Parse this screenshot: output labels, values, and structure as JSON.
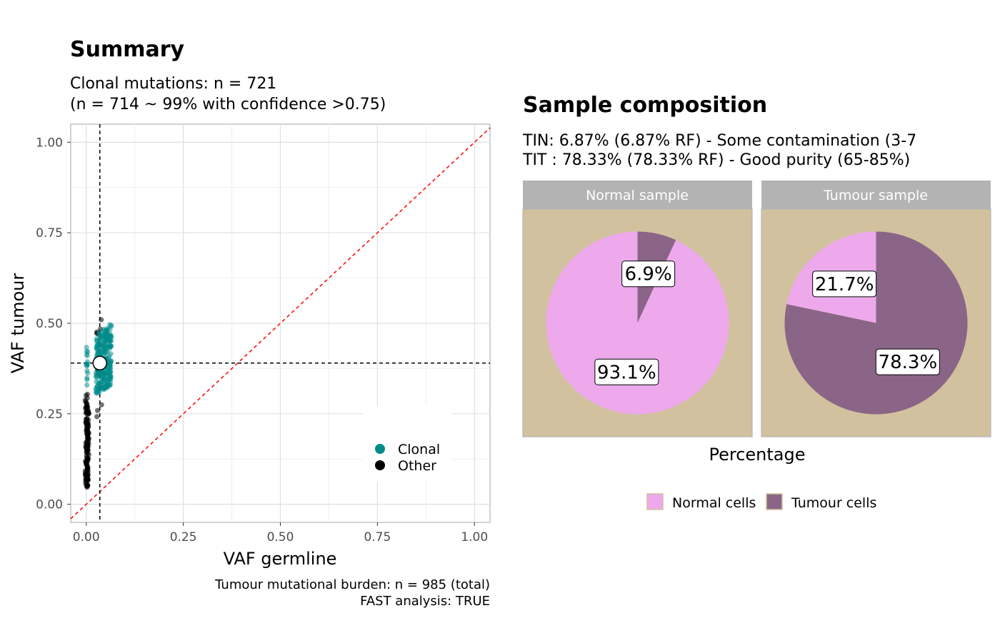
{
  "left_panel": {
    "title": "Summary",
    "subtitle_line1": "Clonal mutations: n = 721",
    "subtitle_line2": "(n = 714 ~ 99% with confidence >0.75)",
    "caption_line1": "Tumour mutational burden: n = 985 (total)",
    "caption_line2": "FAST analysis: TRUE"
  },
  "right_panel": {
    "title": "Sample composition",
    "subtitle_line1": "TIN: 6.87% (6.87% RF) - Some contamination (3-7",
    "subtitle_line2": "TIT : 78.33% (78.33% RF) - Good purity (65-85%)",
    "xlabel": "Percentage"
  },
  "chart_data": [
    {
      "type": "scatter",
      "title": "Summary",
      "xlabel": "VAF germline",
      "ylabel": "VAF tumour",
      "xlim": [
        -0.04,
        1.04
      ],
      "ylim": [
        -0.05,
        1.05
      ],
      "xticks": [
        "0.00",
        "0.25",
        "0.50",
        "0.75",
        "1.00"
      ],
      "yticks": [
        "0.00",
        "0.25",
        "0.50",
        "0.75",
        "1.00"
      ],
      "grid": true,
      "legend_position": "bottom-right",
      "series": [
        {
          "name": "Clonal",
          "color": "#008B8B",
          "x_range": [
            0.0,
            0.065
          ],
          "y_range": [
            0.29,
            0.5
          ]
        },
        {
          "name": "Other",
          "color": "#000000",
          "x_range": [
            0.0,
            0.04
          ],
          "y_range": [
            0.04,
            0.52
          ]
        }
      ],
      "reference_lines": {
        "vertical_x": 0.035,
        "horizontal_y": 0.39,
        "diagonal": "y = x",
        "diagonal_color": "#FF0000"
      },
      "centroid": {
        "x": 0.035,
        "y": 0.39
      }
    },
    {
      "type": "pie",
      "facets": [
        {
          "label": "Normal sample",
          "slices": [
            {
              "name": "Normal cells",
              "value": 93.1,
              "label": "93.1%"
            },
            {
              "name": "Tumour cells",
              "value": 6.9,
              "label": "6.9%"
            }
          ]
        },
        {
          "label": "Tumour sample",
          "slices": [
            {
              "name": "Normal cells",
              "value": 21.7,
              "label": "21.7%"
            },
            {
              "name": "Tumour cells",
              "value": 78.3,
              "label": "78.3%"
            }
          ]
        }
      ],
      "legend": [
        {
          "name": "Normal cells",
          "color": "#EDA9EC"
        },
        {
          "name": "Tumour cells",
          "color": "#8B6587"
        }
      ],
      "panel_background": "#D2C19F",
      "strip_background": "#B3B3B3",
      "legend_position": "bottom"
    }
  ]
}
